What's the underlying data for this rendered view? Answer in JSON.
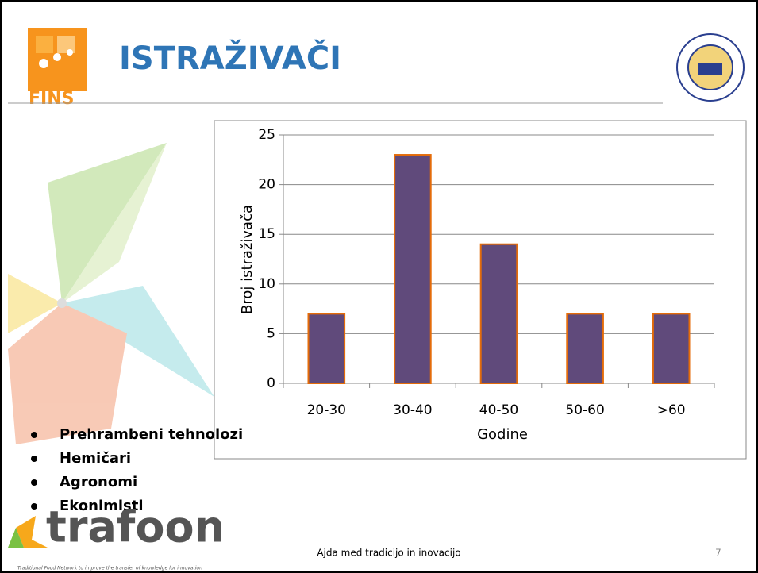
{
  "header": {
    "title": "ISTRAŽIVAČI",
    "logo": "FINS"
  },
  "chart_data": {
    "type": "bar",
    "x_label": "Godine",
    "y_label": "Broj istraživača",
    "categories": [
      "20-30",
      "30-40",
      "40-50",
      "50-60",
      ">60"
    ],
    "values": [
      7,
      23,
      14,
      7,
      7
    ],
    "color": "#604a7b",
    "edge_color": "#e46c0a",
    "ylim": [
      0,
      25
    ],
    "yticks": [
      0,
      5,
      10,
      15,
      20,
      25
    ],
    "grid": true
  },
  "bullets": [
    "Prehrambeni tehnolozi",
    "Hemičari",
    "Agronomi",
    "Ekonimisti"
  ],
  "footer": {
    "logo": "trafoon",
    "tagline": "Traditional Food Network to improve the transfer of knowledge for innovation",
    "text": "Ajda med tradicijo in inovacijo",
    "page": "7"
  }
}
